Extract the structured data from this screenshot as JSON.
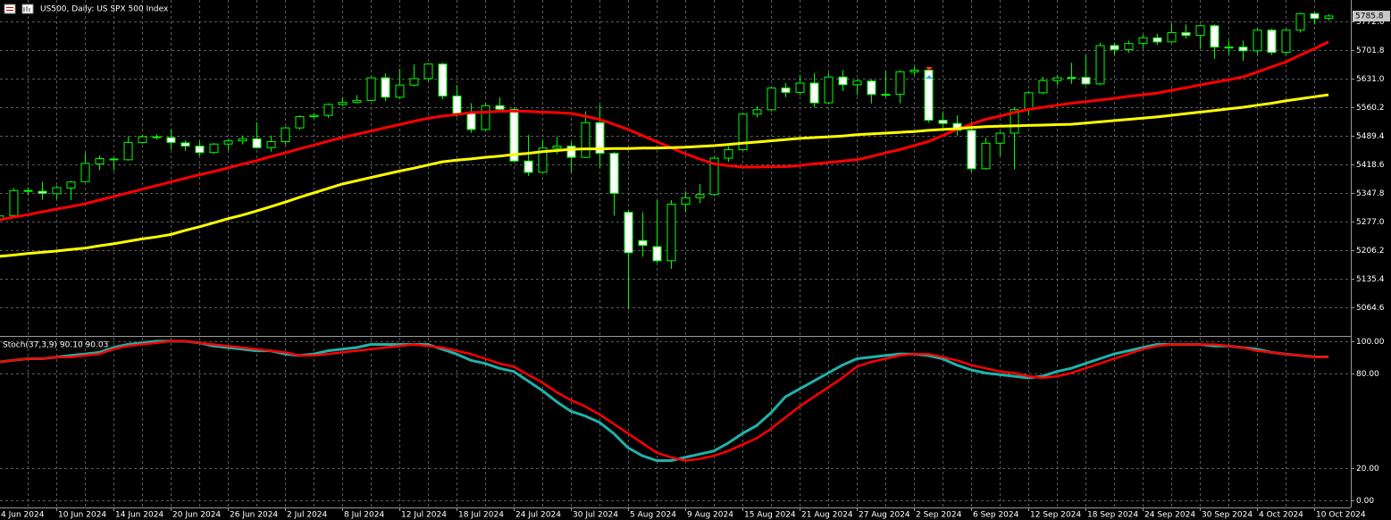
{
  "chart_data": [
    {
      "type": "candlestick",
      "title": "US500, Daily: US SPX 500 Index",
      "categories": [
        "4 Jun 2024",
        null,
        null,
        null,
        "10 Jun 2024",
        null,
        null,
        null,
        "14 Jun 2024",
        null,
        null,
        null,
        "20 Jun 2024",
        null,
        null,
        null,
        "26 Jun 2024",
        null,
        null,
        null,
        "2 Jul 2024",
        null,
        null,
        null,
        "8 Jul 2024",
        null,
        null,
        null,
        "12 Jul 2024",
        null,
        null,
        null,
        "18 Jul 2024",
        null,
        null,
        null,
        "24 Jul 2024",
        null,
        null,
        null,
        "30 Jul 2024",
        null,
        null,
        null,
        "5 Aug 2024",
        null,
        null,
        null,
        "9 Aug 2024",
        null,
        null,
        null,
        "15 Aug 2024",
        null,
        null,
        null,
        "21 Aug 2024",
        null,
        null,
        null,
        "27 Aug 2024",
        null,
        null,
        null,
        "2 Sep 2024",
        null,
        null,
        null,
        "6 Sep 2024",
        null,
        null,
        null,
        "12 Sep 2024",
        null,
        null,
        null,
        "18 Sep 2024",
        null,
        null,
        null,
        "24 Sep 2024",
        null,
        null,
        null,
        "30 Sep 2024",
        null,
        null,
        null,
        "4 Oct 2024",
        null,
        null,
        null,
        "10 Oct 2024",
        null
      ],
      "open": [
        5283,
        5292,
        5354,
        5352,
        5346,
        5360,
        5376,
        5420,
        5432,
        5430,
        5473,
        5487,
        5485,
        5472,
        5464,
        5448,
        5469,
        5477,
        5482,
        5460,
        5475,
        5509,
        5537,
        5540,
        5567,
        5572,
        5577,
        5633,
        5585,
        5615,
        5631,
        5667,
        5588,
        5545,
        5505,
        5564,
        5555,
        5427,
        5399,
        5459,
        5464,
        5436,
        5522,
        5446,
        5300,
        5230,
        5215,
        5180,
        5320,
        5336,
        5344,
        5434,
        5455,
        5543,
        5554,
        5608,
        5597,
        5620,
        5571,
        5635,
        5616,
        5625,
        5592,
        5592,
        5648,
        5652,
        5528,
        5520,
        5503,
        5408,
        5471,
        5496,
        5554,
        5596,
        5626,
        5633,
        5634,
        5618,
        5713,
        5703,
        5718,
        5732,
        5722,
        5745,
        5738,
        5762,
        5709,
        5709,
        5700,
        5751,
        5696,
        5751,
        5792,
        5780
      ],
      "high": [
        5300,
        5360,
        5362,
        5376,
        5366,
        5378,
        5447,
        5441,
        5436,
        5488,
        5490,
        5493,
        5505,
        5478,
        5479,
        5472,
        5482,
        5490,
        5523,
        5490,
        5512,
        5540,
        5545,
        5570,
        5584,
        5590,
        5636,
        5644,
        5655,
        5666,
        5669,
        5670,
        5615,
        5570,
        5570,
        5585,
        5560,
        5491,
        5480,
        5487,
        5474,
        5550,
        5566,
        5450,
        5305,
        5300,
        5330,
        5330,
        5352,
        5370,
        5438,
        5463,
        5546,
        5562,
        5610,
        5620,
        5640,
        5645,
        5645,
        5652,
        5630,
        5630,
        5650,
        5652,
        5660,
        5655,
        5550,
        5540,
        5525,
        5485,
        5500,
        5560,
        5600,
        5636,
        5640,
        5670,
        5690,
        5720,
        5720,
        5725,
        5740,
        5742,
        5767,
        5765,
        5765,
        5765,
        5725,
        5725,
        5755,
        5755,
        5755,
        5795,
        5796,
        5790
      ],
      "low": [
        5270,
        5290,
        5343,
        5331,
        5332,
        5330,
        5375,
        5404,
        5403,
        5428,
        5470,
        5480,
        5455,
        5452,
        5440,
        5444,
        5454,
        5468,
        5458,
        5450,
        5468,
        5505,
        5532,
        5534,
        5563,
        5570,
        5576,
        5575,
        5580,
        5612,
        5624,
        5580,
        5536,
        5497,
        5500,
        5548,
        5425,
        5390,
        5397,
        5444,
        5400,
        5434,
        5410,
        5292,
        5060,
        5190,
        5175,
        5160,
        5300,
        5322,
        5340,
        5425,
        5452,
        5535,
        5550,
        5585,
        5590,
        5560,
        5568,
        5600,
        5590,
        5570,
        5585,
        5570,
        5640,
        5522,
        5510,
        5490,
        5400,
        5405,
        5440,
        5406,
        5540,
        5592,
        5615,
        5618,
        5615,
        5615,
        5690,
        5695,
        5705,
        5715,
        5720,
        5730,
        5705,
        5680,
        5690,
        5675,
        5690,
        5690,
        5690,
        5745,
        5765,
        5775
      ],
      "close": [
        5291,
        5354,
        5352,
        5347,
        5361,
        5375,
        5421,
        5433,
        5431,
        5473,
        5487,
        5485,
        5473,
        5464,
        5448,
        5469,
        5477,
        5482,
        5460,
        5475,
        5509,
        5537,
        5540,
        5567,
        5572,
        5577,
        5633,
        5585,
        5615,
        5631,
        5667,
        5588,
        5545,
        5505,
        5564,
        5555,
        5427,
        5399,
        5459,
        5464,
        5436,
        5522,
        5446,
        5347,
        5200,
        5218,
        5180,
        5320,
        5336,
        5344,
        5434,
        5455,
        5543,
        5554,
        5608,
        5597,
        5620,
        5571,
        5635,
        5616,
        5625,
        5592,
        5592,
        5648,
        5652,
        5528,
        5520,
        5503,
        5408,
        5471,
        5496,
        5554,
        5596,
        5626,
        5633,
        5634,
        5618,
        5713,
        5703,
        5718,
        5732,
        5722,
        5745,
        5738,
        5762,
        5709,
        5709,
        5700,
        5751,
        5696,
        5751,
        5792,
        5780,
        5786
      ],
      "up_color": "#000000",
      "down_color": "#ffffff",
      "candle_outline": "#00ff00",
      "series": [
        {
          "color": "#ff0000",
          "values": [
            5281,
            5288,
            5294,
            5301,
            5308,
            5314,
            5321,
            5330,
            5339,
            5348,
            5357,
            5366,
            5375,
            5384,
            5393,
            5401,
            5410,
            5419,
            5428,
            5438,
            5447,
            5457,
            5466,
            5476,
            5485,
            5493,
            5501,
            5509,
            5517,
            5525,
            5533,
            5538,
            5542,
            5547,
            5548,
            5550,
            5551,
            5550,
            5548,
            5547,
            5545,
            5538,
            5530,
            5518,
            5505,
            5490,
            5475,
            5460,
            5445,
            5432,
            5420,
            5416,
            5412,
            5412,
            5413,
            5413,
            5416,
            5420,
            5423,
            5427,
            5430,
            5438,
            5447,
            5455,
            5465,
            5475,
            5490,
            5505,
            5518,
            5530,
            5538,
            5547,
            5555,
            5560,
            5565,
            5570,
            5574,
            5578,
            5582,
            5587,
            5591,
            5595,
            5602,
            5608,
            5615,
            5622,
            5628,
            5635,
            5647,
            5660,
            5672,
            5689,
            5705,
            5722
          ]
        },
        {
          "color": "#ffff00",
          "values": [
            5191,
            5194,
            5198,
            5201,
            5204,
            5208,
            5211,
            5217,
            5222,
            5228,
            5234,
            5239,
            5245,
            5255,
            5264,
            5274,
            5284,
            5293,
            5303,
            5314,
            5325,
            5337,
            5348,
            5359,
            5370,
            5378,
            5386,
            5394,
            5402,
            5409,
            5417,
            5425,
            5429,
            5432,
            5436,
            5439,
            5443,
            5446,
            5450,
            5453,
            5456,
            5457,
            5457,
            5458,
            5458,
            5459,
            5459,
            5460,
            5461,
            5463,
            5465,
            5468,
            5471,
            5474,
            5477,
            5480,
            5483,
            5485,
            5487,
            5489,
            5492,
            5494,
            5496,
            5498,
            5500,
            5503,
            5505,
            5507,
            5510,
            5512,
            5513,
            5514,
            5515,
            5516,
            5517,
            5518,
            5521,
            5524,
            5527,
            5530,
            5533,
            5536,
            5540,
            5544,
            5548,
            5552,
            5556,
            5560,
            5565,
            5570,
            5576,
            5581,
            5586,
            5591
          ]
        }
      ],
      "current_price": 5785.8,
      "ylim": [
        4993.8,
        5825.7
      ],
      "yticks": [
        5772.6,
        5701.8,
        {
          "value": 5631,
          "label": "5631.0"
        },
        5560.2,
        5489.4,
        5418.6,
        5347.8,
        {
          "value": 5277,
          "label": "5277.0"
        },
        5206.2,
        5135.4,
        5064.6
      ],
      "grid": true
    },
    {
      "type": "line",
      "title": "Stoch(37,3,9) 90.10 90.03",
      "series": [
        {
          "color": "#20b2aa",
          "values": [
            87,
            88,
            89,
            89,
            90,
            91,
            92,
            93,
            96,
            98,
            99,
            100,
            100,
            100,
            99,
            97,
            96,
            95,
            94,
            94,
            92,
            91,
            92,
            94,
            95,
            96,
            98,
            98,
            98,
            98,
            98,
            95,
            92,
            88,
            86,
            83,
            81,
            75,
            69,
            62,
            56,
            53,
            49,
            42,
            33,
            28,
            25,
            25,
            27,
            29,
            31,
            36,
            42,
            47,
            55,
            65,
            70,
            75,
            80,
            85,
            89,
            90,
            91,
            92,
            92,
            91,
            89,
            85,
            82,
            80,
            79,
            78,
            77,
            78,
            81,
            83,
            86,
            89,
            92,
            94,
            96,
            98,
            98,
            98,
            98,
            97,
            97,
            96,
            95,
            93,
            92,
            91,
            90.2,
            90.1
          ]
        },
        {
          "color": "#ff0000",
          "values": [
            87,
            88,
            89,
            89,
            90,
            90,
            91,
            92,
            95,
            97,
            98,
            99,
            100,
            100,
            99,
            98,
            97,
            96,
            95,
            94,
            93,
            91,
            91,
            92,
            93,
            94,
            95,
            96,
            97,
            98,
            97,
            96,
            94,
            92,
            89,
            86,
            84,
            79,
            74,
            68,
            63,
            59,
            54,
            48,
            42,
            36,
            30,
            27,
            25,
            26,
            28,
            31,
            35,
            39,
            45,
            52,
            59,
            65,
            71,
            77,
            84,
            87,
            89,
            91,
            92,
            92,
            90,
            88,
            85,
            83,
            81,
            80,
            78,
            77,
            78,
            80,
            83,
            86,
            89,
            92,
            95,
            97,
            98,
            98,
            98,
            98,
            97,
            96,
            94,
            93,
            92,
            91,
            90.1,
            90.03
          ]
        }
      ],
      "ylim": [
        -4.5,
        102.2
      ],
      "yticks": [
        {
          "value": 100,
          "label": "100.00"
        },
        {
          "value": 80,
          "label": "80.00"
        },
        {
          "value": 20,
          "label": "20.00"
        },
        {
          "value": 0,
          "label": "0.00"
        }
      ],
      "grid": true
    }
  ]
}
